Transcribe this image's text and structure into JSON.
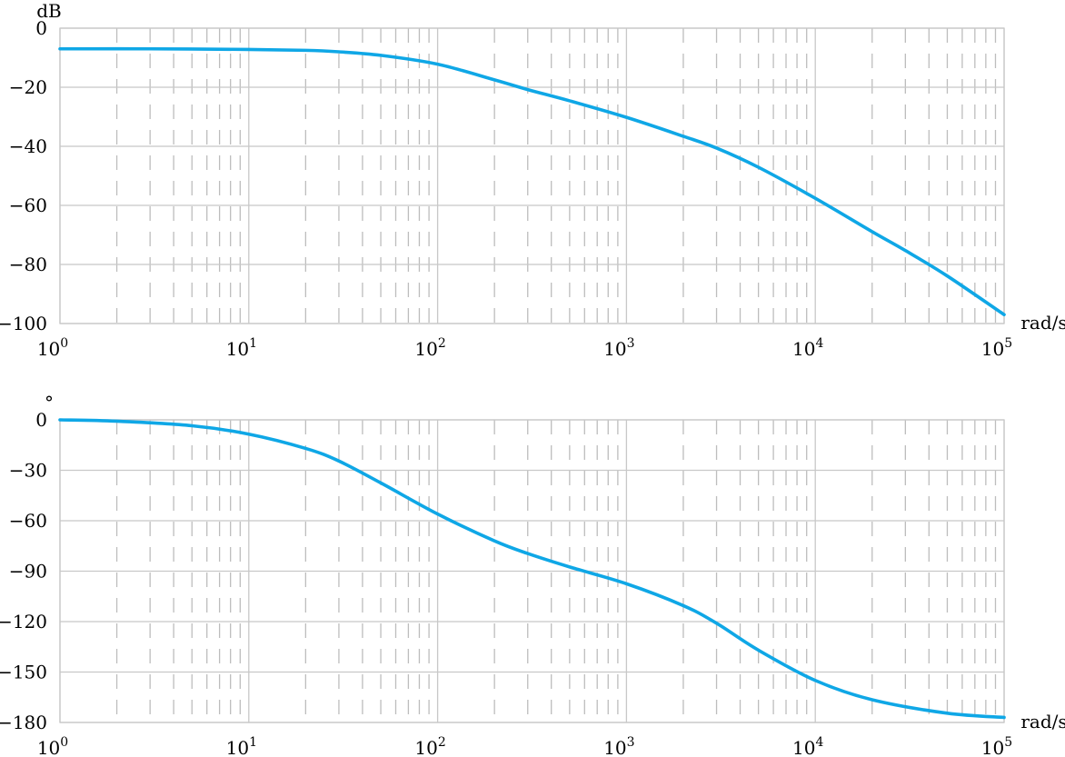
{
  "chart_data": [
    {
      "type": "line",
      "x_scale": "log",
      "xlim": [
        1,
        100000
      ],
      "ylim": [
        -100,
        0
      ],
      "ylabel": "dB",
      "xlabel": "rad/s",
      "grid": true,
      "x_tick_labels": [
        {
          "base": "10",
          "exp": "0"
        },
        {
          "base": "10",
          "exp": "1"
        },
        {
          "base": "10",
          "exp": "2"
        },
        {
          "base": "10",
          "exp": "3"
        },
        {
          "base": "10",
          "exp": "4"
        },
        {
          "base": "10",
          "exp": "5"
        }
      ],
      "y_ticks": [
        0,
        -20,
        -40,
        -60,
        -80,
        -100
      ],
      "y_tick_labels": [
        "0",
        "−20",
        "−40",
        "−60",
        "−80",
        "−100"
      ],
      "series": [
        {
          "color": "#0fa7e6",
          "x": [
            1,
            3,
            10,
            20,
            30,
            50,
            100,
            200,
            300,
            500,
            1000,
            2000,
            3000,
            5000,
            10000,
            20000,
            30000,
            50000,
            100000
          ],
          "y": [
            -7,
            -7,
            -7.2,
            -7.5,
            -8,
            -9.2,
            -12.2,
            -17.5,
            -20.8,
            -24.6,
            -30.2,
            -36.6,
            -40.6,
            -47.1,
            -57.6,
            -68.9,
            -75.3,
            -83.9,
            -97
          ]
        }
      ]
    },
    {
      "type": "line",
      "x_scale": "log",
      "xlim": [
        1,
        100000
      ],
      "ylim": [
        -180,
        0
      ],
      "ylabel": "°",
      "xlabel": "rad/s",
      "grid": true,
      "x_tick_labels": [
        {
          "base": "10",
          "exp": "0"
        },
        {
          "base": "10",
          "exp": "1"
        },
        {
          "base": "10",
          "exp": "2"
        },
        {
          "base": "10",
          "exp": "3"
        },
        {
          "base": "10",
          "exp": "4"
        },
        {
          "base": "10",
          "exp": "5"
        }
      ],
      "y_ticks": [
        0,
        -30,
        -60,
        -90,
        -120,
        -150,
        -180
      ],
      "y_tick_labels": [
        "0",
        "−30",
        "−60",
        "−90",
        "−120",
        "−150",
        "−180"
      ],
      "series": [
        {
          "color": "#0fa7e6",
          "x": [
            1,
            2,
            5,
            10,
            20,
            30,
            50,
            100,
            200,
            300,
            500,
            1000,
            2000,
            3000,
            5000,
            10000,
            20000,
            50000,
            100000
          ],
          "y": [
            0,
            -0.8,
            -3.5,
            -8.5,
            -17,
            -24.5,
            -37.5,
            -56,
            -72,
            -79.5,
            -87.5,
            -97.5,
            -110.5,
            -121,
            -137,
            -155,
            -166.5,
            -174.5,
            -177
          ]
        }
      ]
    }
  ]
}
